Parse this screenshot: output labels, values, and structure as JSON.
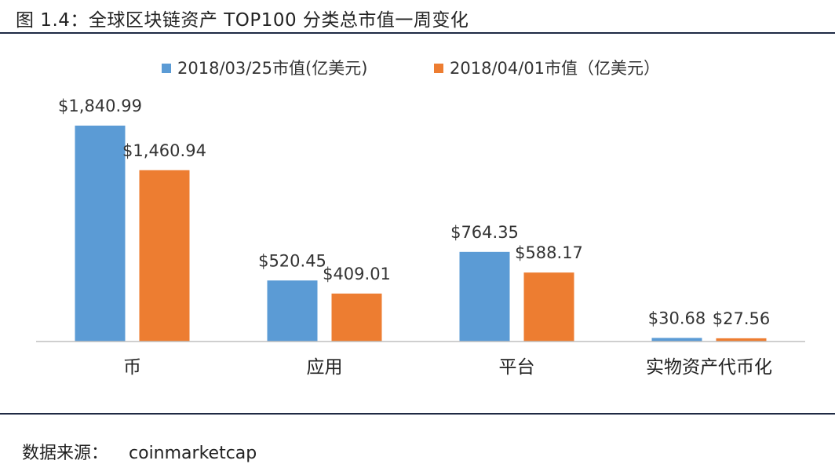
{
  "figure_title": "图 1.4：全球区块链资产 TOP100 分类总市值一周变化",
  "source": {
    "label": "数据来源：",
    "value": "coinmarketcap"
  },
  "chart_data": {
    "type": "bar",
    "categories": [
      "币",
      "应用",
      "平台",
      "实物资产代币化"
    ],
    "series": [
      {
        "name": "2018/03/25市值(亿美元)",
        "color": "#5B9BD5",
        "values": [
          1840.99,
          520.45,
          764.35,
          30.68
        ],
        "labels": [
          "$1,840.99",
          "$520.45",
          "$764.35",
          "$30.68"
        ]
      },
      {
        "name": "2018/04/01市值（亿美元）",
        "color": "#ED7D31",
        "values": [
          1460.94,
          409.01,
          588.17,
          27.56
        ],
        "labels": [
          "$1,460.94",
          "$409.01",
          "$588.17",
          "$27.56"
        ]
      }
    ],
    "ylim": [
      0,
      1840.99
    ],
    "grid": false,
    "legend_position": "top-center",
    "axis_color": "#BFBFBF"
  }
}
